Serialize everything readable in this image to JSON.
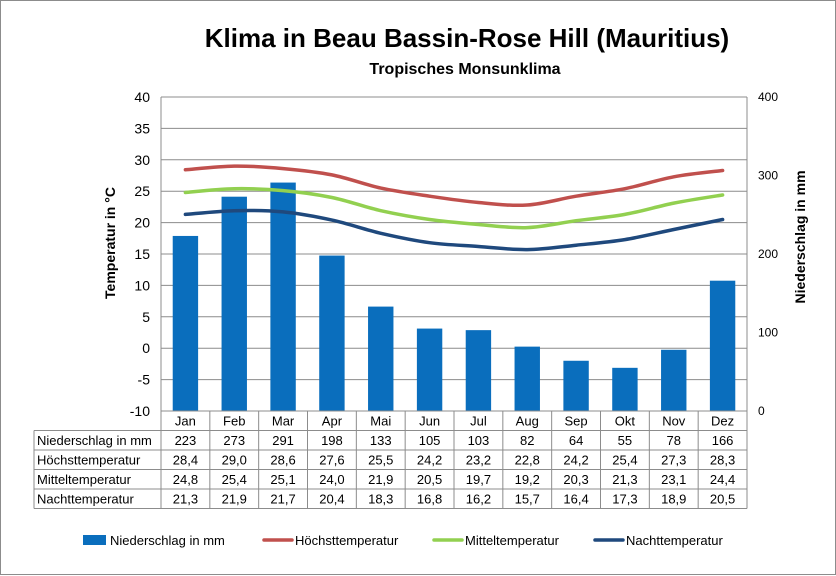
{
  "chart_data": {
    "type": "bar+line",
    "title": "Klima in Beau Bassin-Rose Hill (Mauritius)",
    "subtitle": "Tropisches Monsunklima",
    "ylabel_left": "Temperatur in °C",
    "ylabel_right": "Niederschlag in mm",
    "ylim_left": [
      -10,
      40
    ],
    "yticks_left": [
      "40",
      "35",
      "30",
      "25",
      "20",
      "15",
      "10",
      "5",
      "0",
      "-5",
      "-10"
    ],
    "ylim_right": [
      0,
      400
    ],
    "yticks_right": [
      "400",
      "300",
      "200",
      "100",
      "0"
    ],
    "grid": true,
    "legend_position": "bottom",
    "categories": [
      "Jan",
      "Feb",
      "Mar",
      "Apr",
      "Mai",
      "Jun",
      "Jul",
      "Aug",
      "Sep",
      "Okt",
      "Nov",
      "Dez"
    ],
    "series": [
      {
        "name": "Niederschlag in mm",
        "type": "bar",
        "axis": "right",
        "color": "#0a6ebd",
        "values": [
          223,
          273,
          291,
          198,
          133,
          105,
          103,
          82,
          64,
          55,
          78,
          166
        ],
        "labels": [
          "223",
          "273",
          "291",
          "198",
          "133",
          "105",
          "103",
          "82",
          "64",
          "55",
          "78",
          "166"
        ]
      },
      {
        "name": "Höchsttemperatur",
        "type": "line",
        "axis": "left",
        "color": "#c0504d",
        "values": [
          28.4,
          29.0,
          28.6,
          27.6,
          25.5,
          24.2,
          23.2,
          22.8,
          24.2,
          25.4,
          27.3,
          28.3
        ],
        "labels": [
          "28,4",
          "29,0",
          "28,6",
          "27,6",
          "25,5",
          "24,2",
          "23,2",
          "22,8",
          "24,2",
          "25,4",
          "27,3",
          "28,3"
        ]
      },
      {
        "name": "Mitteltemperatur",
        "type": "line",
        "axis": "left",
        "color": "#92d050",
        "values": [
          24.8,
          25.4,
          25.1,
          24.0,
          21.9,
          20.5,
          19.7,
          19.2,
          20.3,
          21.3,
          23.1,
          24.4
        ],
        "labels": [
          "24,8",
          "25,4",
          "25,1",
          "24,0",
          "21,9",
          "20,5",
          "19,7",
          "19,2",
          "20,3",
          "21,3",
          "23,1",
          "24,4"
        ]
      },
      {
        "name": "Nachttemperatur",
        "type": "line",
        "axis": "left",
        "color": "#1f497d",
        "values": [
          21.3,
          21.9,
          21.7,
          20.4,
          18.3,
          16.8,
          16.2,
          15.7,
          16.4,
          17.3,
          18.9,
          20.5
        ],
        "labels": [
          "21,3",
          "21,9",
          "21,7",
          "20,4",
          "18,3",
          "16,8",
          "16,2",
          "15,7",
          "16,4",
          "17,3",
          "18,9",
          "20,5"
        ]
      }
    ]
  }
}
